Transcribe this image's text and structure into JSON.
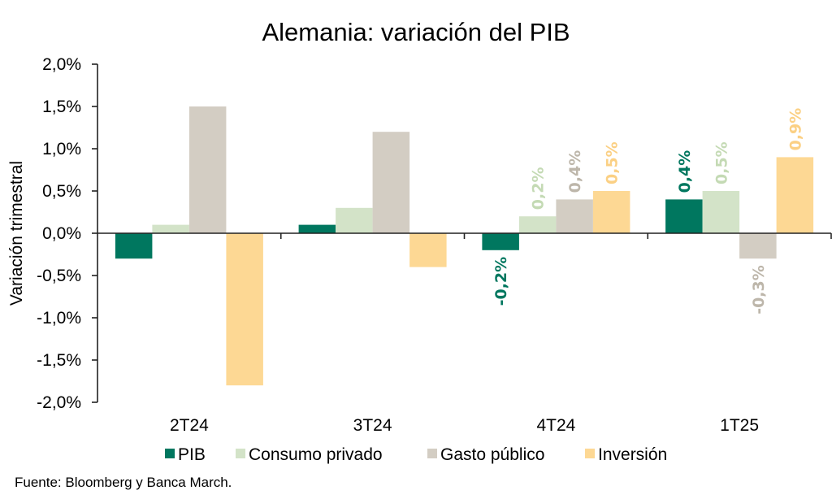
{
  "chart_data": {
    "type": "bar",
    "title": "Alemania: variación del PIB",
    "xlabel": "",
    "ylabel": "Variación trimestral",
    "ylim": [
      -2.0,
      2.0
    ],
    "yticks": [
      2.0,
      1.5,
      1.0,
      0.5,
      0.0,
      -0.5,
      -1.0,
      -1.5,
      -2.0
    ],
    "ytick_labels": [
      "2,0%",
      "1,5%",
      "1,0%",
      "0,5%",
      "0,0%",
      "-0,5%",
      "-1,0%",
      "-1,5%",
      "-2,0%"
    ],
    "categories": [
      "2T24",
      "3T24",
      "4T24",
      "1T25"
    ],
    "grid": false,
    "legend_position": "bottom",
    "series": [
      {
        "name": "PIB",
        "color": "#00775F",
        "values": [
          -0.3,
          0.1,
          -0.2,
          0.4
        ],
        "labels": [
          null,
          null,
          "-0,2%",
          "0,4%"
        ]
      },
      {
        "name": "Consumo privado",
        "color": "#D3E3C8",
        "values": [
          0.1,
          0.3,
          0.2,
          0.5
        ],
        "labels": [
          null,
          null,
          "0,2%",
          "0,5%"
        ]
      },
      {
        "name": "Gasto público",
        "color": "#D3CDC3",
        "values": [
          1.5,
          1.2,
          0.4,
          -0.3
        ],
        "labels": [
          null,
          null,
          "0,4%",
          "-0,3%"
        ]
      },
      {
        "name": "Inversión",
        "color": "#FDD894",
        "values": [
          -1.8,
          -0.4,
          0.5,
          0.9
        ],
        "labels": [
          null,
          null,
          "0,5%",
          "0,9%"
        ]
      }
    ],
    "label_colors": [
      "#00775F",
      "#C4DAB4",
      "#BDB6AA",
      "#FBD084"
    ]
  },
  "source": "Fuente: Bloomberg y Banca March."
}
